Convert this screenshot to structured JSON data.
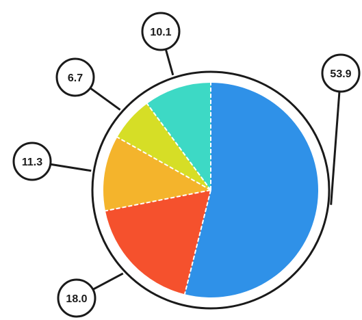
{
  "chart_data": {
    "type": "pie",
    "title": "",
    "values": [
      53.9,
      18.0,
      11.3,
      6.7,
      10.1
    ],
    "labels": [
      "53.9",
      "18.0",
      "11.3",
      "6.7",
      "10.1"
    ],
    "colors": [
      "#2f91e8",
      "#f5512d",
      "#f4b42c",
      "#d6de26",
      "#3dd9c5"
    ],
    "start_angle_deg": 0,
    "direction": "clockwise",
    "slice_separator": "dashed-white",
    "outline_color": "#1a1a1a"
  }
}
